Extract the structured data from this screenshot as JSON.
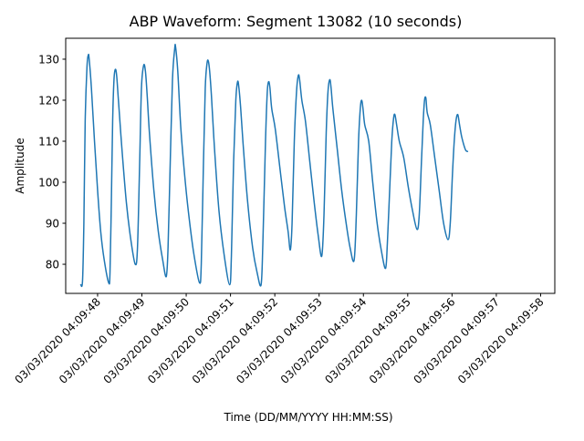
{
  "chart_data": {
    "type": "line",
    "title": "ABP Waveform: Segment 13082 (10 seconds)",
    "xlabel": "Time (DD/MM/YYYY HH:MM:SS)",
    "ylabel": "Amplitude",
    "x_tick_labels": [
      "03/03/2020 04:09:48",
      "03/03/2020 04:09:49",
      "03/03/2020 04:09:50",
      "03/03/2020 04:09:51",
      "03/03/2020 04:09:52",
      "03/03/2020 04:09:53",
      "03/03/2020 04:09:54",
      "03/03/2020 04:09:55",
      "03/03/2020 04:09:56",
      "03/03/2020 04:09:57",
      "03/03/2020 04:09:58"
    ],
    "x_tick_times": [
      "04:09:48",
      "04:09:49",
      "04:09:50",
      "04:09:51",
      "04:09:52",
      "04:09:53",
      "04:09:54",
      "04:09:55",
      "04:09:56",
      "04:09:57",
      "04:09:58"
    ],
    "y_ticks": [
      80,
      90,
      100,
      110,
      120,
      130
    ],
    "xlim": [
      "04:09:47.28",
      "04:09:58.32"
    ],
    "ylim": [
      72.9,
      135.1
    ],
    "grid": false,
    "series": [
      {
        "color": "#1f77b4",
        "points": [
          [
            "04:09:47.62",
            75.0
          ],
          [
            "04:09:47.66",
            76.0
          ],
          [
            "04:09:47.69",
            90.0
          ],
          [
            "04:09:47.72",
            115.0
          ],
          [
            "04:09:47.76",
            128.0
          ],
          [
            "04:09:47.79",
            131.0
          ],
          [
            "04:09:47.81",
            130.0
          ],
          [
            "04:09:47.86",
            123.0
          ],
          [
            "04:09:47.93",
            110.0
          ],
          [
            "04:09:48.00",
            98.0
          ],
          [
            "04:09:48.07",
            88.0
          ],
          [
            "04:09:48.15",
            81.0
          ],
          [
            "04:09:48.25",
            75.5
          ],
          [
            "04:09:48.28",
            78.0
          ],
          [
            "04:09:48.31",
            95.0
          ],
          [
            "04:09:48.34",
            115.0
          ],
          [
            "04:09:48.37",
            125.0
          ],
          [
            "04:09:48.40",
            127.5
          ],
          [
            "04:09:48.43",
            126.0
          ],
          [
            "04:09:48.47",
            120.0
          ],
          [
            "04:09:48.55",
            108.0
          ],
          [
            "04:09:48.65",
            95.0
          ],
          [
            "04:09:48.75",
            86.0
          ],
          [
            "04:09:48.85",
            80.0
          ],
          [
            "04:09:48.90",
            84.0
          ],
          [
            "04:09:48.95",
            105.0
          ],
          [
            "04:09:48.99",
            123.0
          ],
          [
            "04:09:49.04",
            128.5
          ],
          [
            "04:09:49.08",
            127.0
          ],
          [
            "04:09:49.12",
            121.0
          ],
          [
            "04:09:49.17",
            112.0
          ],
          [
            "04:09:49.27",
            98.0
          ],
          [
            "04:09:49.37",
            88.0
          ],
          [
            "04:09:49.47",
            81.0
          ],
          [
            "04:09:49.55",
            77.0
          ],
          [
            "04:09:49.59",
            84.0
          ],
          [
            "04:09:49.64",
            105.0
          ],
          [
            "04:09:49.69",
            125.0
          ],
          [
            "04:09:49.74",
            132.5
          ],
          [
            "04:09:49.76",
            133.0
          ],
          [
            "04:09:49.81",
            127.0
          ],
          [
            "04:09:49.88",
            113.0
          ],
          [
            "04:09:49.98",
            100.0
          ],
          [
            "04:09:50.08",
            90.0
          ],
          [
            "04:09:50.18",
            82.0
          ],
          [
            "04:09:50.30",
            75.5
          ],
          [
            "04:09:50.34",
            80.0
          ],
          [
            "04:09:50.39",
            105.0
          ],
          [
            "04:09:50.43",
            123.0
          ],
          [
            "04:09:50.47",
            129.0
          ],
          [
            "04:09:50.50",
            129.5
          ],
          [
            "04:09:50.53",
            127.0
          ],
          [
            "04:09:50.57",
            121.0
          ],
          [
            "04:09:50.64",
            108.0
          ],
          [
            "04:09:50.74",
            93.0
          ],
          [
            "04:09:50.86",
            82.0
          ],
          [
            "04:09:50.98",
            75.0
          ],
          [
            "04:09:51.02",
            82.0
          ],
          [
            "04:09:51.07",
            105.0
          ],
          [
            "04:09:51.12",
            120.0
          ],
          [
            "04:09:51.16",
            124.5
          ],
          [
            "04:09:51.19",
            123.0
          ],
          [
            "04:09:51.23",
            118.0
          ],
          [
            "04:09:51.28",
            110.0
          ],
          [
            "04:09:51.38",
            96.0
          ],
          [
            "04:09:51.50",
            84.0
          ],
          [
            "04:09:51.60",
            78.0
          ],
          [
            "04:09:51.69",
            75.0
          ],
          [
            "04:09:51.73",
            85.0
          ],
          [
            "04:09:51.79",
            110.0
          ],
          [
            "04:09:51.83",
            122.0
          ],
          [
            "04:09:51.86",
            124.5
          ],
          [
            "04:09:51.89",
            123.0
          ],
          [
            "04:09:51.93",
            118.0
          ],
          [
            "04:09:52.01",
            113.0
          ],
          [
            "04:09:52.12",
            103.0
          ],
          [
            "04:09:52.22",
            94.0
          ],
          [
            "04:09:52.30",
            88.0
          ],
          [
            "04:09:52.35",
            83.5
          ],
          [
            "04:09:52.39",
            90.0
          ],
          [
            "04:09:52.44",
            110.0
          ],
          [
            "04:09:52.49",
            122.0
          ],
          [
            "04:09:52.53",
            126.0
          ],
          [
            "04:09:52.56",
            125.0
          ],
          [
            "04:09:52.61",
            120.0
          ],
          [
            "04:09:52.69",
            115.0
          ],
          [
            "04:09:52.79",
            105.0
          ],
          [
            "04:09:52.89",
            95.0
          ],
          [
            "04:09:52.98",
            87.0
          ],
          [
            "04:09:53.06",
            82.0
          ],
          [
            "04:09:53.11",
            92.0
          ],
          [
            "04:09:53.16",
            112.0
          ],
          [
            "04:09:53.20",
            122.0
          ],
          [
            "04:09:53.24",
            125.0
          ],
          [
            "04:09:53.27",
            123.0
          ],
          [
            "04:09:53.31",
            118.0
          ],
          [
            "04:09:53.41",
            108.0
          ],
          [
            "04:09:53.51",
            98.0
          ],
          [
            "04:09:53.61",
            90.0
          ],
          [
            "04:09:53.70",
            84.0
          ],
          [
            "04:09:53.79",
            81.0
          ],
          [
            "04:09:53.84",
            92.0
          ],
          [
            "04:09:53.89",
            110.0
          ],
          [
            "04:09:53.93",
            118.0
          ],
          [
            "04:09:53.96",
            120.0
          ],
          [
            "04:09:53.99",
            118.0
          ],
          [
            "04:09:54.03",
            114.0
          ],
          [
            "04:09:54.12",
            110.0
          ],
          [
            "04:09:54.21",
            100.0
          ],
          [
            "04:09:54.31",
            90.0
          ],
          [
            "04:09:54.41",
            83.0
          ],
          [
            "04:09:54.50",
            79.0
          ],
          [
            "04:09:54.54",
            85.0
          ],
          [
            "04:09:54.60",
            100.0
          ],
          [
            "04:09:54.64",
            110.0
          ],
          [
            "04:09:54.68",
            115.5
          ],
          [
            "04:09:54.71",
            116.5
          ],
          [
            "04:09:54.75",
            114.0
          ],
          [
            "04:09:54.81",
            110.0
          ],
          [
            "04:09:54.91",
            106.0
          ],
          [
            "04:09:55.01",
            99.0
          ],
          [
            "04:09:55.11",
            93.0
          ],
          [
            "04:09:55.21",
            88.5
          ],
          [
            "04:09:55.26",
            92.0
          ],
          [
            "04:09:55.31",
            105.0
          ],
          [
            "04:09:55.35",
            115.0
          ],
          [
            "04:09:55.38",
            120.0
          ],
          [
            "04:09:55.41",
            120.5
          ],
          [
            "04:09:55.44",
            117.0
          ],
          [
            "04:09:55.51",
            114.0
          ],
          [
            "04:09:55.61",
            106.0
          ],
          [
            "04:09:55.71",
            98.0
          ],
          [
            "04:09:55.81",
            90.0
          ],
          [
            "04:09:55.91",
            86.0
          ],
          [
            "04:09:55.96",
            90.0
          ],
          [
            "04:09:56.01",
            102.0
          ],
          [
            "04:09:56.05",
            110.0
          ],
          [
            "04:09:56.09",
            115.0
          ],
          [
            "04:09:56.13",
            116.5
          ],
          [
            "04:09:56.17",
            114.0
          ],
          [
            "04:09:56.22",
            111.0
          ],
          [
            "04:09:56.30",
            108.0
          ],
          [
            "04:09:56.35",
            107.5
          ]
        ]
      }
    ]
  }
}
